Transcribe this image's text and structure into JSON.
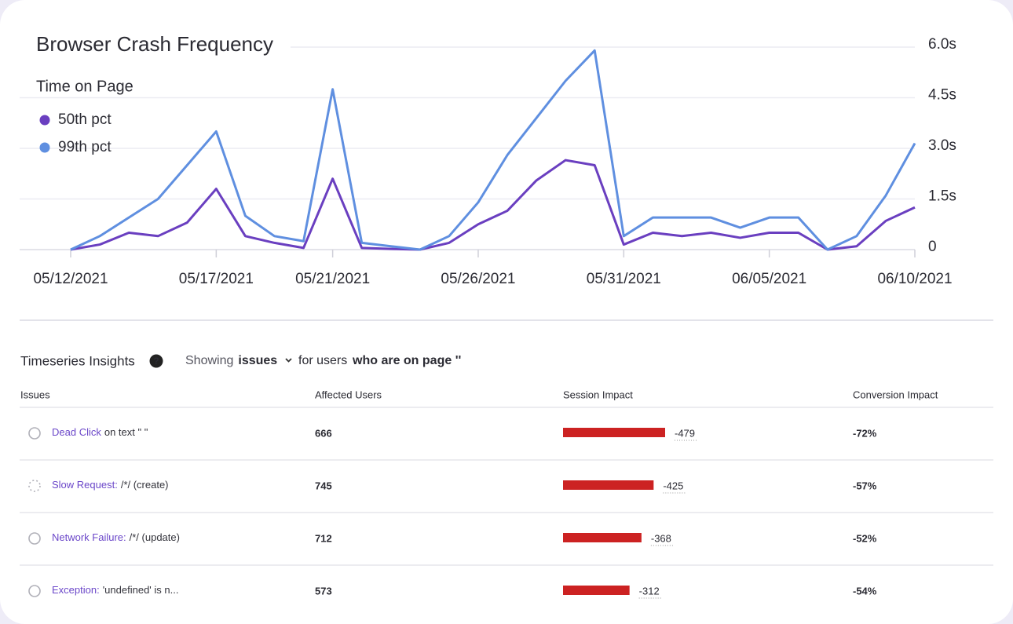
{
  "chart_data": {
    "type": "line",
    "title": "Browser Crash Frequency",
    "legend_title": "Time on Page",
    "x": [
      "05/12/2021",
      "05/13/2021",
      "05/14/2021",
      "05/15/2021",
      "05/16/2021",
      "05/17/2021",
      "05/18/2021",
      "05/19/2021",
      "05/20/2021",
      "05/21/2021",
      "05/22/2021",
      "05/23/2021",
      "05/24/2021",
      "05/25/2021",
      "05/26/2021",
      "05/27/2021",
      "05/28/2021",
      "05/29/2021",
      "05/30/2021",
      "05/31/2021",
      "06/01/2021",
      "06/02/2021",
      "06/03/2021",
      "06/04/2021",
      "06/05/2021",
      "06/06/2021",
      "06/07/2021",
      "06/08/2021",
      "06/09/2021",
      "06/10/2021"
    ],
    "xticks": [
      "05/12/2021",
      "05/17/2021",
      "05/21/2021",
      "05/26/2021",
      "05/31/2021",
      "06/05/2021",
      "06/10/2021"
    ],
    "series": [
      {
        "name": "50th pct",
        "color": "#6a3fc0",
        "values": [
          0,
          0.15,
          0.5,
          0.4,
          0.8,
          1.8,
          0.4,
          0.2,
          0.05,
          2.1,
          0.05,
          0.02,
          0,
          0.2,
          0.75,
          1.15,
          2.05,
          2.65,
          2.5,
          0.15,
          0.5,
          0.4,
          0.5,
          0.35,
          0.5,
          0.5,
          0,
          0.1,
          0.85,
          1.25
        ]
      },
      {
        "name": "99th pct",
        "color": "#5f8fe0",
        "values": [
          0,
          0.4,
          0.95,
          1.5,
          2.5,
          3.5,
          1.0,
          0.4,
          0.25,
          4.75,
          0.2,
          0.1,
          0,
          0.4,
          1.4,
          2.8,
          3.9,
          5.0,
          5.9,
          0.4,
          0.95,
          0.95,
          0.95,
          0.65,
          0.95,
          0.95,
          0,
          0.4,
          1.6,
          3.15
        ]
      }
    ],
    "ylim": [
      0,
      6
    ],
    "yticks": [
      0,
      {
        "value": 1.5,
        "label": "1.5s"
      },
      {
        "value": 3,
        "label": "3.0s"
      },
      {
        "value": 4.5,
        "label": "4.5s"
      },
      {
        "value": 6,
        "label": "6.0s"
      }
    ],
    "grid": true
  },
  "insights": {
    "title": "Timeseries Insights",
    "showing": "Showing",
    "filter": "issues",
    "for_users": "for users",
    "condition": "who are on page ''",
    "bar_color": "#cc2222",
    "columns": [
      "Issues",
      "Affected Users",
      "Session Impact",
      "Conversion Impact"
    ],
    "rows": [
      {
        "name": "Dead Click",
        "detail": "on text \" \"",
        "users": 666,
        "session": -479,
        "conversion": "-72%"
      },
      {
        "name": "Slow Request:",
        "detail": "/*/ (create)",
        "users": 745,
        "session": -425,
        "conversion": "-57%"
      },
      {
        "name": "Network Failure:",
        "detail": "/*/ (update)",
        "users": 712,
        "session": -368,
        "conversion": "-52%"
      },
      {
        "name": "Exception:",
        "detail": "'undefined' is n...",
        "users": 573,
        "session": -312,
        "conversion": "-54%"
      }
    ]
  }
}
